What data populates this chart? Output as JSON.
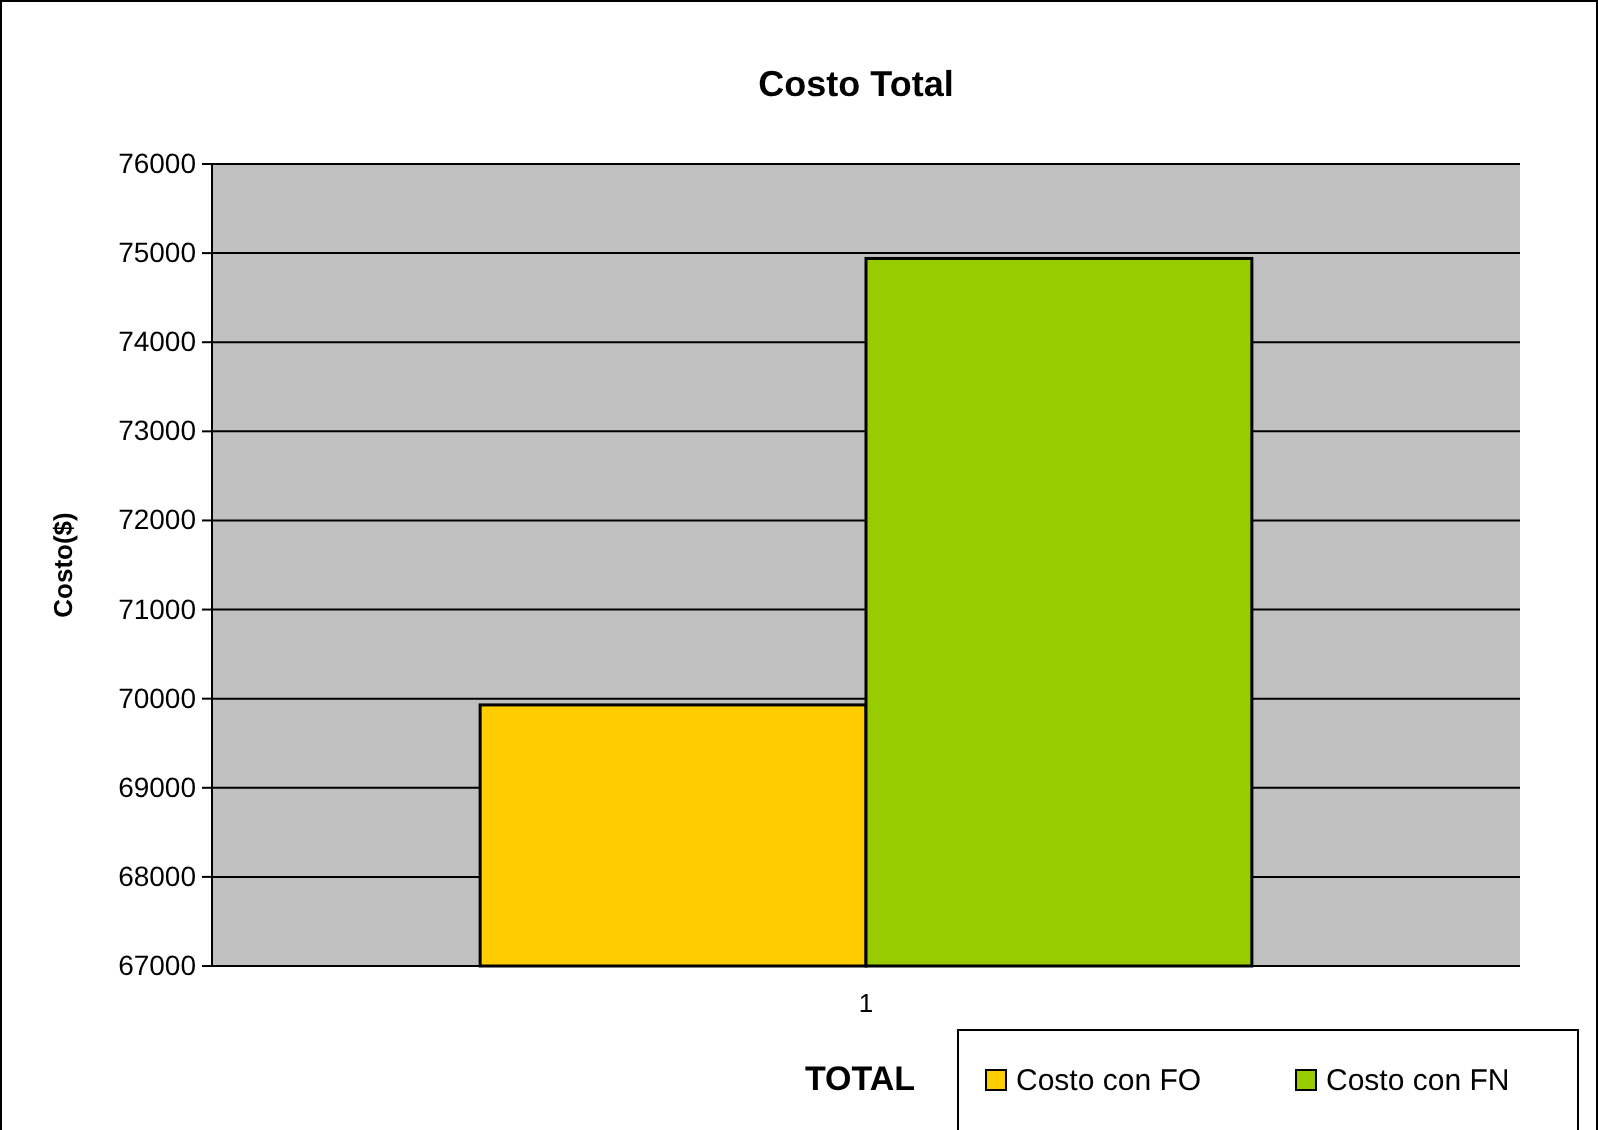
{
  "chart_data": {
    "type": "bar",
    "title": "Costo Total",
    "xlabel": "TOTAL",
    "ylabel": "Costo($)",
    "categories": [
      "1"
    ],
    "series": [
      {
        "name": "Costo con FO",
        "color": "#ffcc00",
        "values": [
          69930
        ]
      },
      {
        "name": "Costo con FN",
        "color": "#99cc00",
        "values": [
          74940
        ]
      }
    ],
    "ylim": [
      67000,
      76000
    ],
    "yticks": [
      67000,
      68000,
      69000,
      70000,
      71000,
      72000,
      73000,
      74000,
      75000,
      76000
    ],
    "grid": "y",
    "legend": "bottom right"
  }
}
